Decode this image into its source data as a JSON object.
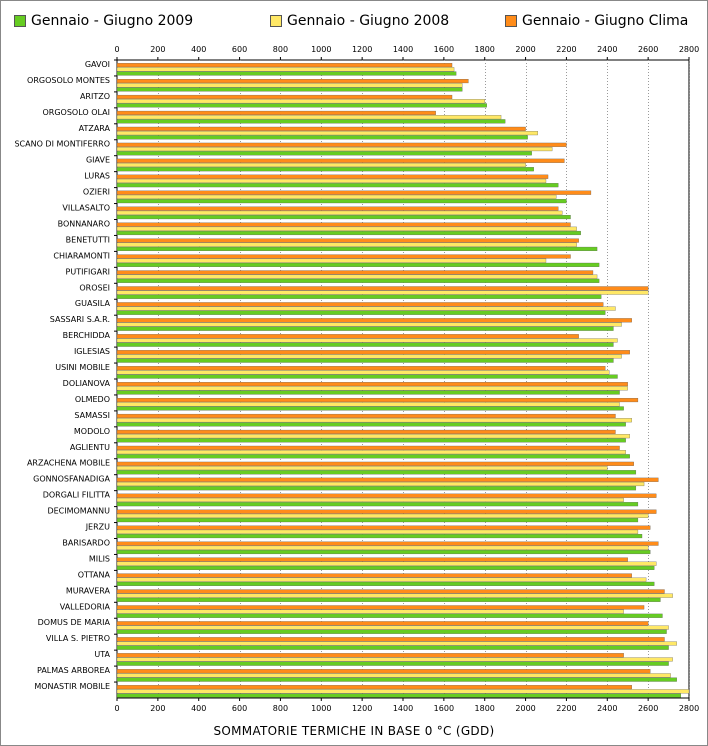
{
  "chart_data": {
    "type": "bar",
    "orientation": "horizontal",
    "xlabel": "SOMMATORIE TERMICHE IN BASE 0 °C (GDD)",
    "xlim": [
      0,
      2800
    ],
    "xticks": [
      0,
      200,
      400,
      600,
      800,
      1000,
      1200,
      1400,
      1600,
      1800,
      2000,
      2200,
      2400,
      2600,
      2800
    ],
    "grid": true,
    "legend_position": "top",
    "categories": [
      "GAVOI",
      "ORGOSOLO MONTES",
      "ARITZO",
      "ORGOSOLO OLAI",
      "ATZARA",
      "SCANO DI MONTIFERRO",
      "GIAVE",
      "LURAS",
      "OZIERI",
      "VILLASALTO",
      "BONNANARO",
      "BENETUTTI",
      "CHIARAMONTI",
      "PUTIFIGARI",
      "OROSEI",
      "GUASILA",
      "SASSARI S.A.R.",
      "BERCHIDDA",
      "IGLESIAS",
      "USINI MOBILE",
      "DOLIANOVA",
      "OLMEDO",
      "SAMASSI",
      "MODOLO",
      "AGLIENTU",
      "ARZACHENA MOBILE",
      "GONNOSFANADIGA",
      "DORGALI FILITTA",
      "DECIMOMANNU",
      "JERZU",
      "BARISARDO",
      "MILIS",
      "OTTANA",
      "MURAVERA",
      "VALLEDORIA",
      "DOMUS DE MARIA",
      "VILLA S. PIETRO",
      "UTA",
      "PALMAS ARBOREA",
      "MONASTIR MOBILE"
    ],
    "series": [
      {
        "name": "Gennaio - Giugno Clima",
        "color": "#ff8c1a",
        "values": [
          1640,
          1720,
          1640,
          1560,
          2000,
          2200,
          2190,
          2110,
          2320,
          2160,
          2220,
          2260,
          2220,
          2330,
          2600,
          2380,
          2520,
          2260,
          2510,
          2390,
          2500,
          2550,
          2440,
          2440,
          2460,
          2530,
          2650,
          2640,
          2640,
          2610,
          2650,
          2500,
          2520,
          2680,
          2580,
          2600,
          2680,
          2480,
          2610,
          2520
        ]
      },
      {
        "name": "Gennaio - Giugno 2008",
        "color": "#ffe866",
        "values": [
          1650,
          1690,
          1800,
          1880,
          2060,
          2130,
          2000,
          2100,
          2150,
          2180,
          2250,
          2250,
          2100,
          2350,
          2600,
          2440,
          2470,
          2450,
          2470,
          2410,
          2500,
          2460,
          2520,
          2510,
          2490,
          2400,
          2580,
          2480,
          2600,
          2550,
          2600,
          2640,
          2590,
          2720,
          2480,
          2700,
          2740,
          2720,
          2710,
          2800
        ]
      },
      {
        "name": "Gennaio - Giugno 2009",
        "color": "#66cc22",
        "values": [
          1660,
          1690,
          1810,
          1900,
          2010,
          2030,
          2040,
          2160,
          2200,
          2220,
          2270,
          2350,
          2360,
          2360,
          2370,
          2390,
          2430,
          2430,
          2430,
          2450,
          2460,
          2480,
          2490,
          2490,
          2510,
          2540,
          2540,
          2550,
          2550,
          2570,
          2610,
          2630,
          2630,
          2660,
          2670,
          2690,
          2700,
          2700,
          2740,
          2760
        ]
      }
    ]
  },
  "legend": {
    "items": [
      {
        "label": "Gennaio - Giugno 2009",
        "color": "#66cc22"
      },
      {
        "label": "Gennaio - Giugno 2008",
        "color": "#ffe866"
      },
      {
        "label": "Gennaio - Giugno Clima",
        "color": "#ff8c1a"
      }
    ]
  }
}
